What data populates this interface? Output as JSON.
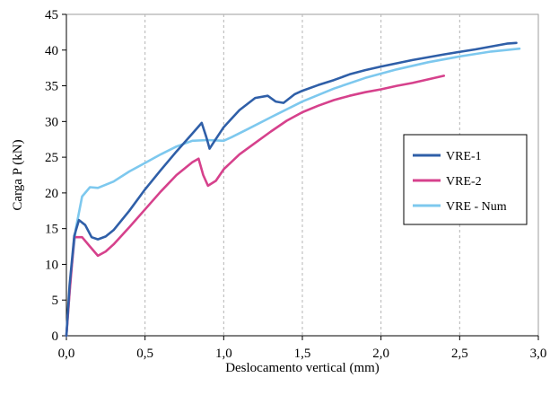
{
  "chart_data": {
    "type": "line",
    "xlabel": "Deslocamento vertical (mm)",
    "ylabel": "Carga P (kN)",
    "xlim": [
      0,
      3
    ],
    "ylim": [
      0,
      45
    ],
    "x_ticks": [
      "0,0",
      "0,5",
      "1,0",
      "1,5",
      "2,0",
      "2,5",
      "3,0"
    ],
    "y_ticks": [
      "0",
      "5",
      "10",
      "15",
      "20",
      "25",
      "30",
      "35",
      "40",
      "45"
    ],
    "grid": "vertical dashed",
    "legend_position": "right",
    "series": [
      {
        "name": "VRE-1",
        "color": "#2f5fa8",
        "points": [
          [
            0,
            0
          ],
          [
            0.02,
            7
          ],
          [
            0.05,
            14
          ],
          [
            0.08,
            16.2
          ],
          [
            0.12,
            15.5
          ],
          [
            0.16,
            13.8
          ],
          [
            0.2,
            13.5
          ],
          [
            0.25,
            13.9
          ],
          [
            0.3,
            14.8
          ],
          [
            0.4,
            17.5
          ],
          [
            0.5,
            20.5
          ],
          [
            0.6,
            23.2
          ],
          [
            0.7,
            25.8
          ],
          [
            0.8,
            28.3
          ],
          [
            0.86,
            29.8
          ],
          [
            0.89,
            27.8
          ],
          [
            0.91,
            26.2
          ],
          [
            0.94,
            27.2
          ],
          [
            1.0,
            29.2
          ],
          [
            1.1,
            31.6
          ],
          [
            1.2,
            33.3
          ],
          [
            1.28,
            33.6
          ],
          [
            1.33,
            32.8
          ],
          [
            1.38,
            32.6
          ],
          [
            1.45,
            33.8
          ],
          [
            1.5,
            34.3
          ],
          [
            1.6,
            35.1
          ],
          [
            1.7,
            35.8
          ],
          [
            1.8,
            36.6
          ],
          [
            1.9,
            37.2
          ],
          [
            2.0,
            37.7
          ],
          [
            2.2,
            38.6
          ],
          [
            2.4,
            39.4
          ],
          [
            2.6,
            40.1
          ],
          [
            2.8,
            40.9
          ],
          [
            2.86,
            41.0
          ]
        ]
      },
      {
        "name": "VRE-2",
        "color": "#d6418c",
        "points": [
          [
            0,
            0
          ],
          [
            0.02,
            6
          ],
          [
            0.05,
            13.8
          ],
          [
            0.1,
            13.8
          ],
          [
            0.15,
            12.5
          ],
          [
            0.2,
            11.2
          ],
          [
            0.25,
            11.8
          ],
          [
            0.3,
            12.8
          ],
          [
            0.4,
            15.2
          ],
          [
            0.5,
            17.7
          ],
          [
            0.6,
            20.2
          ],
          [
            0.7,
            22.5
          ],
          [
            0.8,
            24.3
          ],
          [
            0.84,
            24.8
          ],
          [
            0.87,
            22.5
          ],
          [
            0.9,
            21.0
          ],
          [
            0.95,
            21.7
          ],
          [
            1.0,
            23.3
          ],
          [
            1.1,
            25.4
          ],
          [
            1.2,
            27.0
          ],
          [
            1.3,
            28.6
          ],
          [
            1.4,
            30.1
          ],
          [
            1.5,
            31.3
          ],
          [
            1.6,
            32.2
          ],
          [
            1.7,
            33.0
          ],
          [
            1.8,
            33.6
          ],
          [
            1.9,
            34.1
          ],
          [
            2.0,
            34.5
          ],
          [
            2.1,
            35.0
          ],
          [
            2.2,
            35.4
          ],
          [
            2.3,
            35.9
          ],
          [
            2.4,
            36.4
          ]
        ]
      },
      {
        "name": "VRE - Num",
        "color": "#7dc8ee",
        "points": [
          [
            0,
            0
          ],
          [
            0.03,
            9
          ],
          [
            0.06,
            15
          ],
          [
            0.1,
            19.5
          ],
          [
            0.15,
            20.8
          ],
          [
            0.2,
            20.7
          ],
          [
            0.3,
            21.6
          ],
          [
            0.4,
            23.0
          ],
          [
            0.5,
            24.2
          ],
          [
            0.6,
            25.4
          ],
          [
            0.7,
            26.5
          ],
          [
            0.8,
            27.3
          ],
          [
            0.9,
            27.4
          ],
          [
            1.0,
            27.3
          ],
          [
            1.05,
            27.8
          ],
          [
            1.15,
            28.9
          ],
          [
            1.3,
            30.6
          ],
          [
            1.5,
            32.8
          ],
          [
            1.7,
            34.6
          ],
          [
            1.9,
            36.1
          ],
          [
            2.1,
            37.3
          ],
          [
            2.3,
            38.3
          ],
          [
            2.5,
            39.1
          ],
          [
            2.7,
            39.8
          ],
          [
            2.88,
            40.2
          ]
        ]
      }
    ]
  }
}
